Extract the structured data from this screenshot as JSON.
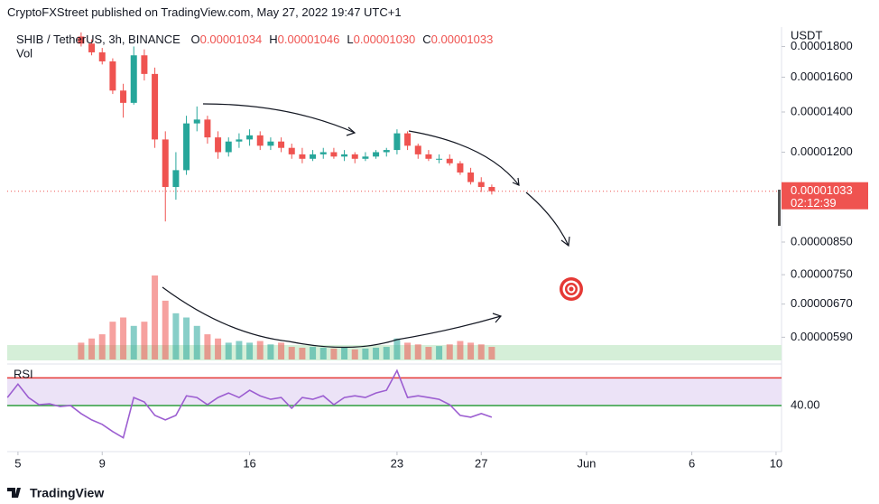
{
  "chart_data": {
    "type": "candlestick",
    "title": "CryptoFXStreet published on TradingView.com, May 27, 2022 19:47 UTC+1",
    "symbol": "SHIB / TetherUS, 3h, BINANCE",
    "ohlc": [
      {
        "key": "O",
        "value": "0.00001034"
      },
      {
        "key": "H",
        "value": "0.00001046"
      },
      {
        "key": "L",
        "value": "0.00001030"
      },
      {
        "key": "C",
        "value": "0.00001033"
      }
    ],
    "volume_label": "Vol",
    "currency": "USDT",
    "footer": "TradingView",
    "up_color": "#26a69a",
    "down_color": "#ef5350",
    "log_scale": true,
    "x": [
      8,
      8.5,
      9,
      9.5,
      10,
      10.5,
      11,
      11.5,
      12,
      12.5,
      13,
      13.5,
      14,
      14.5,
      15,
      15.5,
      16,
      16.5,
      17,
      17.5,
      18,
      18.5,
      19,
      19.5,
      20,
      20.5,
      21,
      21.5,
      22,
      22.5,
      23,
      23.5,
      24,
      24.5,
      25,
      25.5,
      26,
      26.5,
      27,
      27.5
    ],
    "open": [
      1.87e-05,
      1.82e-05,
      1.76e-05,
      1.7e-05,
      1.52e-05,
      1.45e-05,
      1.74e-05,
      1.62e-05,
      1.26e-05,
      1.05e-05,
      1.12e-05,
      1.34e-05,
      1.36e-05,
      1.27e-05,
      1.2e-05,
      1.25e-05,
      1.26e-05,
      1.28e-05,
      1.23e-05,
      1.25e-05,
      1.22e-05,
      1.19e-05,
      1.17e-05,
      1.19e-05,
      1.2e-05,
      1.18e-05,
      1.19e-05,
      1.17e-05,
      1.18e-05,
      1.2e-05,
      1.21e-05,
      1.29e-05,
      1.23e-05,
      1.19e-05,
      1.17e-05,
      1.17e-05,
      1.15e-05,
      1.11e-05,
      1.07e-05,
      1.05e-05
    ],
    "high": [
      1.9e-05,
      1.85e-05,
      1.79e-05,
      1.72e-05,
      1.56e-05,
      1.8e-05,
      1.78e-05,
      1.66e-05,
      1.3e-05,
      1.2e-05,
      1.38e-05,
      1.43e-05,
      1.38e-05,
      1.3e-05,
      1.27e-05,
      1.29e-05,
      1.31e-05,
      1.3e-05,
      1.27e-05,
      1.27e-05,
      1.24e-05,
      1.22e-05,
      1.21e-05,
      1.22e-05,
      1.22e-05,
      1.21e-05,
      1.2e-05,
      1.2e-05,
      1.21e-05,
      1.22e-05,
      1.31e-05,
      1.3e-05,
      1.24e-05,
      1.21e-05,
      1.19e-05,
      1.19e-05,
      1.16e-05,
      1.13e-05,
      1.09e-05,
      1.06e-05
    ],
    "low": [
      1.8e-05,
      1.74e-05,
      1.68e-05,
      1.5e-05,
      1.37e-05,
      1.44e-05,
      1.58e-05,
      1.22e-05,
      9.2e-06,
      1e-05,
      1.1e-05,
      1.3e-05,
      1.24e-05,
      1.17e-05,
      1.18e-05,
      1.22e-05,
      1.23e-05,
      1.21e-05,
      1.21e-05,
      1.2e-05,
      1.17e-05,
      1.15e-05,
      1.16e-05,
      1.17e-05,
      1.17e-05,
      1.16e-05,
      1.15e-05,
      1.16e-05,
      1.17e-05,
      1.18e-05,
      1.19e-05,
      1.21e-05,
      1.17e-05,
      1.16e-05,
      1.15e-05,
      1.14e-05,
      1.1e-05,
      1.06e-05,
      1.03e-05,
      1.02e-05
    ],
    "close": [
      1.82e-05,
      1.76e-05,
      1.7e-05,
      1.52e-05,
      1.45e-05,
      1.74e-05,
      1.62e-05,
      1.26e-05,
      1.05e-05,
      1.12e-05,
      1.34e-05,
      1.36e-05,
      1.27e-05,
      1.2e-05,
      1.25e-05,
      1.26e-05,
      1.28e-05,
      1.23e-05,
      1.25e-05,
      1.22e-05,
      1.19e-05,
      1.17e-05,
      1.19e-05,
      1.2e-05,
      1.18e-05,
      1.19e-05,
      1.17e-05,
      1.18e-05,
      1.2e-05,
      1.21e-05,
      1.29e-05,
      1.23e-05,
      1.19e-05,
      1.17e-05,
      1.17e-05,
      1.15e-05,
      1.11e-05,
      1.07e-05,
      1.05e-05,
      1.033e-05
    ],
    "volume": [
      20,
      25,
      30,
      45,
      50,
      40,
      45,
      100,
      70,
      55,
      50,
      40,
      30,
      25,
      20,
      22,
      20,
      22,
      18,
      20,
      15,
      14,
      15,
      14,
      13,
      14,
      12,
      13,
      14,
      15,
      25,
      20,
      18,
      15,
      16,
      18,
      22,
      20,
      18,
      15
    ],
    "vlim": [
      0,
      100
    ],
    "xlim": [
      4.49,
      41.26
    ],
    "xticks": [
      5,
      9,
      16,
      23,
      27,
      {
        "value": 32,
        "label": "Jun"
      },
      {
        "value": 37,
        "label": "6"
      },
      {
        "value": 41,
        "label": "10"
      }
    ],
    "ylim": [
      5.38e-06,
      1.86e-05
    ],
    "yticks": [
      {
        "value": 1.8e-05,
        "label": "0.00001800"
      },
      {
        "value": 1.6e-05,
        "label": "0.00001600"
      },
      {
        "value": 1.4e-05,
        "label": "0.00001400"
      },
      {
        "value": 1.2e-05,
        "label": "0.00001200"
      },
      {
        "value": 8.5e-06,
        "label": "0.00000850"
      },
      {
        "value": 7.5e-06,
        "label": "0.00000750"
      },
      {
        "value": 6.7e-06,
        "label": "0.00000670"
      },
      {
        "value": 5.9e-06,
        "label": "0.00000590"
      }
    ],
    "last_price": {
      "value": 1.033e-05,
      "label": "0.00001033",
      "countdown": "02:12:39"
    },
    "rsi": {
      "name": "RSI",
      "color": "#9c5ed1",
      "upper": 70,
      "upper_color": "#e53935",
      "lower_color": "#2e9e3e",
      "x": [
        4.5,
        5,
        5.5,
        6,
        6.5,
        7,
        7.5,
        8,
        8.5,
        9,
        9.5,
        10,
        10.5,
        11,
        11.5,
        12,
        12.5,
        13,
        13.5,
        14,
        14.5,
        15,
        15.5,
        16,
        16.5,
        17,
        17.5,
        18,
        18.5,
        19,
        19.5,
        20,
        20.5,
        21,
        21.5,
        22,
        22.5,
        23,
        23.5,
        24,
        24.5,
        25,
        25.5,
        26,
        26.5,
        27,
        27.5
      ],
      "values": [
        48.7,
        63.2,
        48.7,
        41.0,
        41.9,
        39.0,
        40,
        31.3,
        24.5,
        19.7,
        11.9,
        5.2,
        48.7,
        43.9,
        29.4,
        24.5,
        29.4,
        50.6,
        48.7,
        41.0,
        48.7,
        53.6,
        48.7,
        56.5,
        50.6,
        46.8,
        48.7,
        37.1,
        48.7,
        46.8,
        50.6,
        41.0,
        48.7,
        50.6,
        48.7,
        53.6,
        56.5,
        77.8,
        48.7,
        50.6,
        48.7,
        46.8,
        41.0,
        29.4,
        27.4,
        31.3,
        27.4
      ],
      "ylim": [
        0,
        83
      ],
      "yticks": [
        {
          "value": 40,
          "label": "40.00"
        }
      ]
    }
  }
}
